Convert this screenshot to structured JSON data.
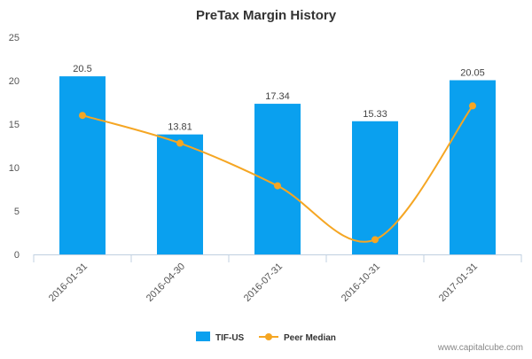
{
  "chart_data": {
    "type": "bar",
    "title": "PreTax Margin History",
    "categories": [
      "2016-01-31",
      "2016-04-30",
      "2016-07-31",
      "2016-10-31",
      "2017-01-31"
    ],
    "series": [
      {
        "name": "TIF-US",
        "type": "bar",
        "values": [
          20.5,
          13.81,
          17.34,
          15.33,
          20.05
        ],
        "color": "#0aa0ef"
      },
      {
        "name": "Peer Median",
        "type": "line",
        "values": [
          16.0,
          12.8,
          7.9,
          1.7,
          17.1
        ],
        "color": "#f5a623"
      }
    ],
    "data_labels": [
      "20.5",
      "13.81",
      "17.34",
      "15.33",
      "20.05"
    ],
    "ylim": [
      0,
      25
    ],
    "yticks": [
      0,
      5,
      10,
      15,
      20,
      25
    ],
    "grid": false,
    "legend": "bottom-center"
  },
  "credit": "www.capitalcube.com"
}
